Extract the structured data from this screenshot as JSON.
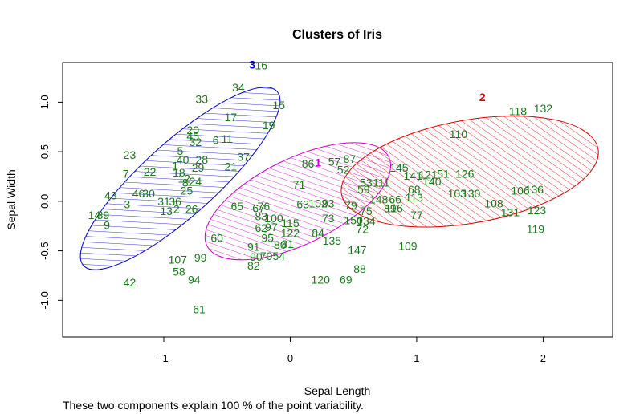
{
  "chart_data": {
    "type": "scatter",
    "title": "Clusters of Iris",
    "xlabel": "Sepal Length",
    "ylabel": "Sepal Width",
    "xlim": [
      -1.8,
      2.55
    ],
    "ylim": [
      -1.37,
      1.4
    ],
    "xticks": [
      -1,
      0,
      1,
      2
    ],
    "yticks": [
      -1.0,
      -0.5,
      0.0,
      0.5,
      1.0
    ],
    "xtick_labels": [
      "-1",
      "0",
      "1",
      "2"
    ],
    "ytick_labels": [
      "-1.0",
      "-0.5",
      "0.0",
      "0.5",
      "1.0"
    ],
    "grid": false,
    "point_color": "#1a7a1a",
    "clusters": [
      {
        "label": "1",
        "color": "#cc00cc",
        "center": [
          0.06,
          0.0
        ],
        "semi_major": 0.8,
        "semi_minor": 0.43,
        "angle_deg": 26,
        "label_pos": [
          0.22,
          0.39
        ]
      },
      {
        "label": "2",
        "color": "#dd0000",
        "center": [
          1.42,
          0.3
        ],
        "semi_major": 1.03,
        "semi_minor": 0.52,
        "angle_deg": 10,
        "label_pos": [
          1.52,
          1.05
        ]
      },
      {
        "label": "3",
        "color": "#0000cc",
        "center": [
          -0.87,
          0.23
        ],
        "semi_major": 1.03,
        "semi_minor": 0.37,
        "angle_deg": 42,
        "label_pos": [
          -0.3,
          1.38
        ]
      }
    ],
    "points": [
      {
        "label": "16",
        "x": -0.23,
        "y": 1.37
      },
      {
        "label": "34",
        "x": -0.41,
        "y": 1.15
      },
      {
        "label": "33",
        "x": -0.7,
        "y": 1.03
      },
      {
        "label": "15",
        "x": -0.09,
        "y": 0.97
      },
      {
        "label": "17",
        "x": -0.47,
        "y": 0.85
      },
      {
        "label": "19",
        "x": -0.17,
        "y": 0.77
      },
      {
        "label": "20",
        "x": -0.77,
        "y": 0.72
      },
      {
        "label": "45",
        "x": -0.77,
        "y": 0.66
      },
      {
        "label": "32",
        "x": -0.75,
        "y": 0.6
      },
      {
        "label": "6",
        "x": -0.59,
        "y": 0.62
      },
      {
        "label": "11",
        "x": -0.5,
        "y": 0.63
      },
      {
        "label": "23",
        "x": -1.27,
        "y": 0.47
      },
      {
        "label": "5",
        "x": -0.87,
        "y": 0.51
      },
      {
        "label": "37",
        "x": -0.37,
        "y": 0.45
      },
      {
        "label": "40",
        "x": -0.85,
        "y": 0.42
      },
      {
        "label": "28",
        "x": -0.7,
        "y": 0.42
      },
      {
        "label": "1",
        "x": -0.91,
        "y": 0.36
      },
      {
        "label": "29",
        "x": -0.73,
        "y": 0.34
      },
      {
        "label": "21",
        "x": -0.47,
        "y": 0.35
      },
      {
        "label": "22",
        "x": -1.11,
        "y": 0.3
      },
      {
        "label": "7",
        "x": -1.3,
        "y": 0.28
      },
      {
        "label": "18",
        "x": -0.88,
        "y": 0.29
      },
      {
        "label": "12",
        "x": -0.84,
        "y": 0.23
      },
      {
        "label": "8",
        "x": -0.83,
        "y": 0.19
      },
      {
        "label": "24",
        "x": -0.75,
        "y": 0.2
      },
      {
        "label": "43",
        "x": -1.42,
        "y": 0.06
      },
      {
        "label": "46",
        "x": -1.2,
        "y": 0.08
      },
      {
        "label": "30",
        "x": -1.12,
        "y": 0.08
      },
      {
        "label": "25",
        "x": -0.82,
        "y": 0.11
      },
      {
        "label": "3",
        "x": -1.29,
        "y": -0.03
      },
      {
        "label": "31",
        "x": -1.0,
        "y": 0.0
      },
      {
        "label": "36",
        "x": -0.91,
        "y": 0.0
      },
      {
        "label": "13",
        "x": -0.98,
        "y": -0.1
      },
      {
        "label": "2",
        "x": -0.9,
        "y": -0.08
      },
      {
        "label": "26",
        "x": -0.78,
        "y": -0.08
      },
      {
        "label": "14",
        "x": -1.55,
        "y": -0.14
      },
      {
        "label": "39",
        "x": -1.48,
        "y": -0.14
      },
      {
        "label": "9",
        "x": -1.45,
        "y": -0.24
      },
      {
        "label": "60",
        "x": -0.58,
        "y": -0.37
      },
      {
        "label": "107",
        "x": -0.89,
        "y": -0.59
      },
      {
        "label": "99",
        "x": -0.71,
        "y": -0.57
      },
      {
        "label": "58",
        "x": -0.88,
        "y": -0.71
      },
      {
        "label": "94",
        "x": -0.76,
        "y": -0.79
      },
      {
        "label": "42",
        "x": -1.27,
        "y": -0.82
      },
      {
        "label": "61",
        "x": -0.72,
        "y": -1.09
      },
      {
        "label": "65",
        "x": -0.42,
        "y": -0.05
      },
      {
        "label": "71",
        "x": 0.07,
        "y": 0.17
      },
      {
        "label": "86",
        "x": 0.14,
        "y": 0.38
      },
      {
        "label": "57",
        "x": 0.35,
        "y": 0.4
      },
      {
        "label": "87",
        "x": 0.47,
        "y": 0.43
      },
      {
        "label": "52",
        "x": 0.42,
        "y": 0.32
      },
      {
        "label": "76",
        "x": -0.21,
        "y": -0.05
      },
      {
        "label": "67",
        "x": -0.25,
        "y": -0.07
      },
      {
        "label": "63",
        "x": 0.1,
        "y": -0.03
      },
      {
        "label": "102",
        "x": 0.22,
        "y": -0.02
      },
      {
        "label": "93",
        "x": 0.3,
        "y": -0.02
      },
      {
        "label": "79",
        "x": 0.48,
        "y": -0.04
      },
      {
        "label": "75",
        "x": 0.6,
        "y": -0.1
      },
      {
        "label": "83",
        "x": -0.23,
        "y": -0.15
      },
      {
        "label": "100",
        "x": -0.13,
        "y": -0.17
      },
      {
        "label": "115",
        "x": 0.0,
        "y": -0.22
      },
      {
        "label": "73",
        "x": 0.3,
        "y": -0.17
      },
      {
        "label": "150",
        "x": 0.5,
        "y": -0.19
      },
      {
        "label": "134",
        "x": 0.6,
        "y": -0.2
      },
      {
        "label": "62",
        "x": -0.23,
        "y": -0.27
      },
      {
        "label": "97",
        "x": -0.15,
        "y": -0.26
      },
      {
        "label": "122",
        "x": 0.0,
        "y": -0.32
      },
      {
        "label": "84",
        "x": 0.22,
        "y": -0.32
      },
      {
        "label": "72",
        "x": 0.57,
        "y": -0.28
      },
      {
        "label": "95",
        "x": -0.18,
        "y": -0.37
      },
      {
        "label": "91",
        "x": -0.29,
        "y": -0.46
      },
      {
        "label": "80",
        "x": -0.08,
        "y": -0.44
      },
      {
        "label": "81",
        "x": -0.02,
        "y": -0.43
      },
      {
        "label": "135",
        "x": 0.33,
        "y": -0.4
      },
      {
        "label": "90",
        "x": -0.27,
        "y": -0.56
      },
      {
        "label": "70",
        "x": -0.19,
        "y": -0.55
      },
      {
        "label": "54",
        "x": -0.09,
        "y": -0.55
      },
      {
        "label": "147",
        "x": 0.53,
        "y": -0.49
      },
      {
        "label": "82",
        "x": -0.29,
        "y": -0.65
      },
      {
        "label": "88",
        "x": 0.55,
        "y": -0.68
      },
      {
        "label": "120",
        "x": 0.24,
        "y": -0.79
      },
      {
        "label": "69",
        "x": 0.44,
        "y": -0.79
      },
      {
        "label": "53",
        "x": 0.6,
        "y": 0.19
      },
      {
        "label": "111",
        "x": 0.72,
        "y": 0.19
      },
      {
        "label": "59",
        "x": 0.58,
        "y": 0.12
      },
      {
        "label": "148",
        "x": 0.7,
        "y": 0.02
      },
      {
        "label": "66",
        "x": 0.83,
        "y": 0.02
      },
      {
        "label": "68",
        "x": 0.98,
        "y": 0.12
      },
      {
        "label": "116",
        "x": 0.82,
        "y": -0.07
      },
      {
        "label": "89",
        "x": 0.79,
        "y": -0.07
      },
      {
        "label": "113",
        "x": 0.98,
        "y": 0.04
      },
      {
        "label": "77",
        "x": 1.0,
        "y": -0.14
      },
      {
        "label": "145",
        "x": 0.86,
        "y": 0.34
      },
      {
        "label": "141",
        "x": 0.97,
        "y": 0.26
      },
      {
        "label": "121",
        "x": 1.09,
        "y": 0.27
      },
      {
        "label": "51",
        "x": 1.21,
        "y": 0.28
      },
      {
        "label": "140",
        "x": 1.12,
        "y": 0.2
      },
      {
        "label": "126",
        "x": 1.38,
        "y": 0.28
      },
      {
        "label": "110",
        "x": 1.33,
        "y": 0.68
      },
      {
        "label": "118",
        "x": 1.8,
        "y": 0.91
      },
      {
        "label": "132",
        "x": 2.0,
        "y": 0.94
      },
      {
        "label": "103",
        "x": 1.32,
        "y": 0.08
      },
      {
        "label": "130",
        "x": 1.43,
        "y": 0.08
      },
      {
        "label": "108",
        "x": 1.61,
        "y": -0.02
      },
      {
        "label": "106",
        "x": 1.82,
        "y": 0.11
      },
      {
        "label": "136",
        "x": 1.93,
        "y": 0.12
      },
      {
        "label": "131",
        "x": 1.74,
        "y": -0.11
      },
      {
        "label": "123",
        "x": 1.95,
        "y": -0.09
      },
      {
        "label": "119",
        "x": 1.94,
        "y": -0.28
      },
      {
        "label": "109",
        "x": 0.93,
        "y": -0.45
      }
    ]
  },
  "footnote": "These two components explain 100 % of the point variability."
}
